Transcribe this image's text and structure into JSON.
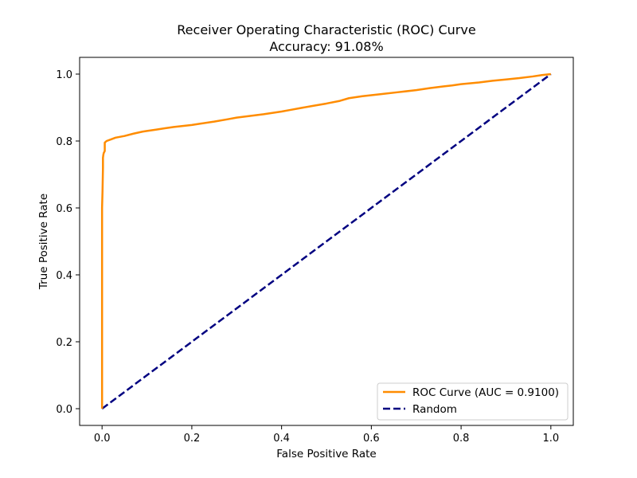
{
  "chart_data": {
    "type": "line",
    "title": "Receiver Operating Characteristic (ROC) Curve",
    "subtitle": "Accuracy: 91.08%",
    "xlabel": "False Positive Rate",
    "ylabel": "True Positive Rate",
    "xlim": [
      -0.05,
      1.05
    ],
    "ylim": [
      -0.05,
      1.05
    ],
    "xticks": [
      0.0,
      0.2,
      0.4,
      0.6,
      0.8,
      1.0
    ],
    "yticks": [
      0.0,
      0.2,
      0.4,
      0.6,
      0.8,
      1.0
    ],
    "xtick_labels": [
      "0.0",
      "0.2",
      "0.4",
      "0.6",
      "0.8",
      "1.0"
    ],
    "ytick_labels": [
      "0.0",
      "0.2",
      "0.4",
      "0.6",
      "0.8",
      "1.0"
    ],
    "grid": false,
    "legend_position": "lower-right",
    "series": [
      {
        "name": "ROC Curve (AUC = 0.9100)",
        "color": "#ff8c00",
        "style": "solid",
        "x": [
          0.0,
          0.0,
          0.0,
          0.001,
          0.002,
          0.002,
          0.003,
          0.004,
          0.006,
          0.006,
          0.01,
          0.02,
          0.03,
          0.05,
          0.07,
          0.09,
          0.1,
          0.12,
          0.14,
          0.16,
          0.18,
          0.2,
          0.22,
          0.25,
          0.28,
          0.3,
          0.33,
          0.36,
          0.4,
          0.42,
          0.44,
          0.47,
          0.5,
          0.53,
          0.55,
          0.58,
          0.62,
          0.66,
          0.7,
          0.73,
          0.76,
          0.78,
          0.8,
          0.84,
          0.87,
          0.9,
          0.93,
          0.96,
          0.98,
          1.0
        ],
        "y": [
          0.0,
          0.48,
          0.6,
          0.65,
          0.72,
          0.75,
          0.76,
          0.765,
          0.77,
          0.795,
          0.8,
          0.805,
          0.81,
          0.815,
          0.822,
          0.828,
          0.83,
          0.834,
          0.838,
          0.842,
          0.845,
          0.848,
          0.852,
          0.858,
          0.865,
          0.87,
          0.875,
          0.88,
          0.888,
          0.893,
          0.898,
          0.905,
          0.912,
          0.92,
          0.928,
          0.934,
          0.94,
          0.946,
          0.952,
          0.958,
          0.963,
          0.966,
          0.97,
          0.975,
          0.98,
          0.984,
          0.988,
          0.993,
          0.997,
          1.0
        ]
      },
      {
        "name": "Random",
        "color": "#000080",
        "style": "dashed",
        "x": [
          0.0,
          1.0
        ],
        "y": [
          0.0,
          1.0
        ]
      }
    ]
  }
}
